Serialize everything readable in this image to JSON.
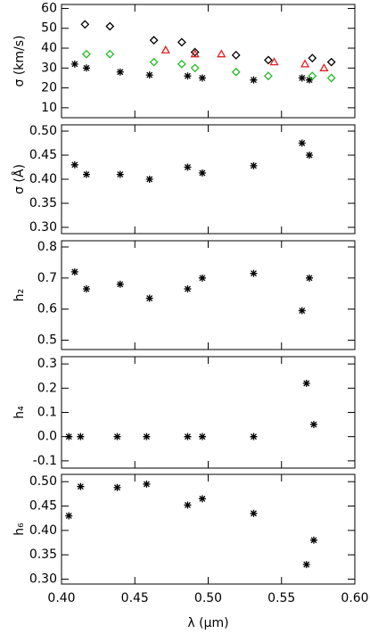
{
  "chart_data": [
    {
      "type": "scatter",
      "ylabel": "σ (km/s)",
      "xlim": [
        0.4,
        0.6
      ],
      "xticks": [
        0.4,
        0.45,
        0.5,
        0.55,
        0.6
      ],
      "xtick_labels": false,
      "ylim": [
        5,
        62
      ],
      "yticks": [
        10,
        20,
        30,
        40,
        50,
        60
      ],
      "series": [
        {
          "color": "#000000",
          "marker": "asterisk",
          "x": [
            0.409,
            0.417,
            0.44,
            0.46,
            0.486,
            0.496,
            0.531,
            0.564,
            0.569
          ],
          "values": [
            32,
            30,
            28,
            26.5,
            26,
            25,
            24,
            25,
            24
          ]
        },
        {
          "color": "#000000",
          "marker": "diamond",
          "x": [
            0.416,
            0.433,
            0.463,
            0.482,
            0.491,
            0.519,
            0.541,
            0.571,
            0.584
          ],
          "values": [
            52,
            51,
            44,
            43,
            38,
            36.5,
            34,
            35,
            33
          ]
        },
        {
          "color": "#22bb22",
          "marker": "diamond",
          "x": [
            0.417,
            0.433,
            0.463,
            0.482,
            0.491,
            0.519,
            0.541,
            0.571,
            0.584
          ],
          "values": [
            37,
            37,
            33,
            32,
            30,
            28,
            26,
            26,
            25
          ]
        },
        {
          "color": "#dd2222",
          "marker": "triangle",
          "x": [
            0.471,
            0.491,
            0.509,
            0.545,
            0.566,
            0.579
          ],
          "values": [
            39,
            37,
            37,
            33,
            32,
            30
          ]
        }
      ]
    },
    {
      "type": "scatter",
      "ylabel": "σ (Å)",
      "xlim": [
        0.4,
        0.6
      ],
      "xticks": [
        0.4,
        0.45,
        0.5,
        0.55,
        0.6
      ],
      "xtick_labels": false,
      "ylim": [
        0.287,
        0.513
      ],
      "yticks": [
        {
          "value": 0.3,
          "label": "0.30"
        },
        {
          "value": 0.35,
          "label": "0.35"
        },
        {
          "value": 0.4,
          "label": "0.40"
        },
        {
          "value": 0.45,
          "label": "0.45"
        },
        {
          "value": 0.5,
          "label": "0.50"
        }
      ],
      "series": [
        {
          "color": "#000000",
          "marker": "asterisk",
          "x": [
            0.409,
            0.417,
            0.44,
            0.46,
            0.486,
            0.496,
            0.531,
            0.564,
            0.569
          ],
          "values": [
            0.43,
            0.41,
            0.41,
            0.4,
            0.425,
            0.413,
            0.428,
            0.475,
            0.45
          ]
        }
      ]
    },
    {
      "type": "scatter",
      "ylabel": "h₂",
      "xlim": [
        0.4,
        0.6
      ],
      "xticks": [
        0.4,
        0.45,
        0.5,
        0.55,
        0.6
      ],
      "xtick_labels": false,
      "ylim": [
        0.47,
        0.82
      ],
      "yticks": [
        0.5,
        0.6,
        0.7,
        0.8
      ],
      "series": [
        {
          "color": "#000000",
          "marker": "asterisk",
          "x": [
            0.409,
            0.417,
            0.44,
            0.46,
            0.486,
            0.496,
            0.531,
            0.564,
            0.569
          ],
          "values": [
            0.72,
            0.665,
            0.68,
            0.635,
            0.665,
            0.7,
            0.715,
            0.595,
            0.7
          ]
        }
      ]
    },
    {
      "type": "scatter",
      "ylabel": "h₄",
      "xlim": [
        0.4,
        0.6
      ],
      "xticks": [
        0.4,
        0.45,
        0.5,
        0.55,
        0.6
      ],
      "xtick_labels": false,
      "ylim": [
        -0.13,
        0.33
      ],
      "yticks": [
        -0.1,
        {
          "value": 0,
          "label": "0.0"
        },
        0.1,
        0.2,
        0.3
      ],
      "series": [
        {
          "color": "#000000",
          "marker": "asterisk",
          "x": [
            0.405,
            0.413,
            0.438,
            0.458,
            0.486,
            0.496,
            0.531,
            0.567,
            0.572
          ],
          "values": [
            0,
            0,
            0,
            0,
            0,
            0,
            0,
            0.22,
            0.05
          ]
        }
      ]
    },
    {
      "type": "scatter",
      "ylabel": "h₆",
      "xlabel": "λ (μm)",
      "xlim": [
        0.4,
        0.6
      ],
      "xtick_labels": true,
      "xticks": [
        {
          "value": 0.4,
          "label": "0.40"
        },
        {
          "value": 0.45,
          "label": "0.45"
        },
        {
          "value": 0.5,
          "label": "0.50"
        },
        {
          "value": 0.55,
          "label": "0.55"
        },
        {
          "value": 0.6,
          "label": "0.60"
        }
      ],
      "ylim": [
        0.29,
        0.515
      ],
      "yticks": [
        {
          "value": 0.3,
          "label": "0.30"
        },
        {
          "value": 0.35,
          "label": "0.35"
        },
        {
          "value": 0.4,
          "label": "0.40"
        },
        {
          "value": 0.45,
          "label": "0.45"
        },
        {
          "value": 0.5,
          "label": "0.50"
        }
      ],
      "series": [
        {
          "color": "#000000",
          "marker": "asterisk",
          "x": [
            0.405,
            0.413,
            0.438,
            0.458,
            0.486,
            0.496,
            0.531,
            0.567,
            0.572
          ],
          "values": [
            0.43,
            0.49,
            0.488,
            0.495,
            0.452,
            0.465,
            0.435,
            0.33,
            0.38
          ]
        }
      ]
    }
  ]
}
